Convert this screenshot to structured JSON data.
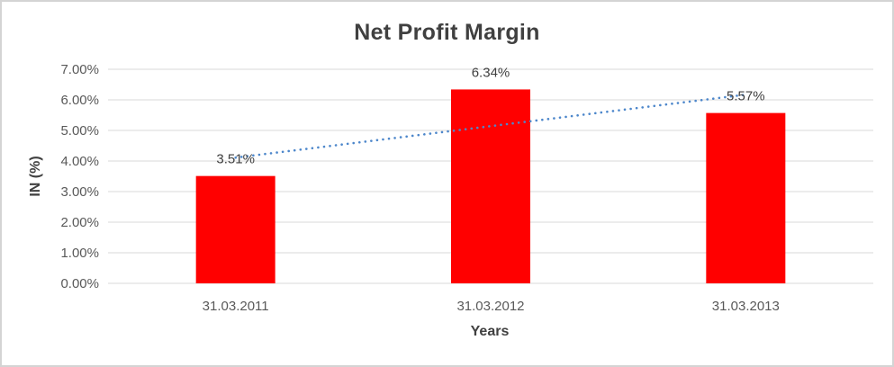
{
  "chart_data": {
    "type": "bar",
    "title": "Net Profit Margin",
    "categories": [
      "31.03.2011",
      "31.03.2012",
      "31.03.2013"
    ],
    "values": [
      3.51,
      6.34,
      5.57
    ],
    "data_labels": [
      "3.51%",
      "6.34%",
      "5.57%"
    ],
    "xlabel": "Years",
    "ylabel": "IN (%)",
    "ylim": [
      0,
      7
    ],
    "ytick_labels": [
      "0.00%",
      "1.00%",
      "2.00%",
      "3.00%",
      "4.00%",
      "5.00%",
      "6.00%",
      "7.00%"
    ],
    "grid": true,
    "legend": "none",
    "bar_color": "#ff0000",
    "trendline": {
      "type": "linear",
      "style": "dotted",
      "color": "#4d87cb",
      "start_value_pct": 4.11,
      "end_value_pct": 6.17
    },
    "colors": {
      "title": "#404040",
      "axis_titles": "#404040",
      "tick_labels": "#595959",
      "data_labels": "#404040",
      "gridline": "#d9d9d9",
      "axis_line": "#d9d9d9",
      "frame_border": "#d4d4d4"
    }
  }
}
